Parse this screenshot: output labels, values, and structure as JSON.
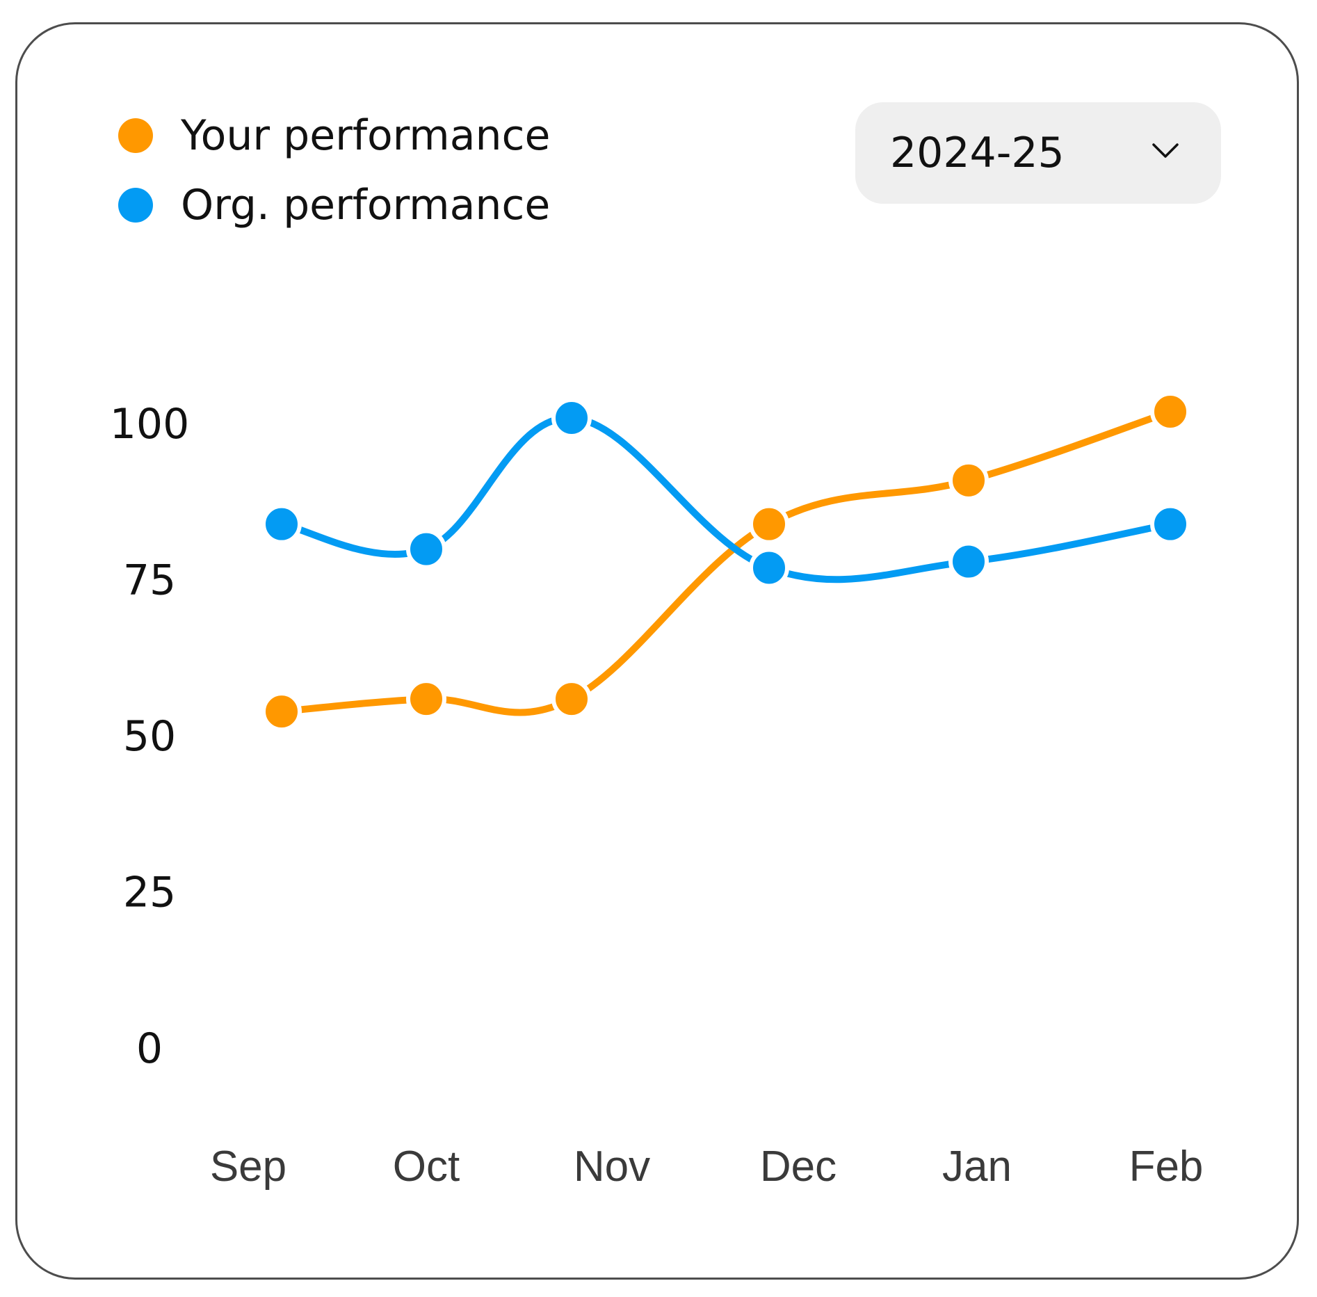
{
  "legend": [
    {
      "label": "Your performance",
      "color": "#FF9800"
    },
    {
      "label": "Org. performance",
      "color": "#039BF3"
    }
  ],
  "period_select": {
    "value": "2024-25",
    "icon": "chevron-down-icon"
  },
  "chart_data": {
    "type": "line",
    "smooth": true,
    "categories": [
      "Sep",
      "Oct",
      "Nov",
      "Dec",
      "Jan",
      "Feb"
    ],
    "y_ticks": [
      "100",
      "75",
      "50",
      "25",
      "0"
    ],
    "ylim": [
      0,
      100
    ],
    "grid": false,
    "legend_position": "top-left",
    "series": [
      {
        "name": "Your performance",
        "color": "#FF9800",
        "values": [
          54,
          56,
          56,
          84,
          91,
          102
        ]
      },
      {
        "name": "Org. performance",
        "color": "#039BF3",
        "values": [
          84,
          80,
          101,
          77,
          78,
          84
        ]
      }
    ]
  }
}
